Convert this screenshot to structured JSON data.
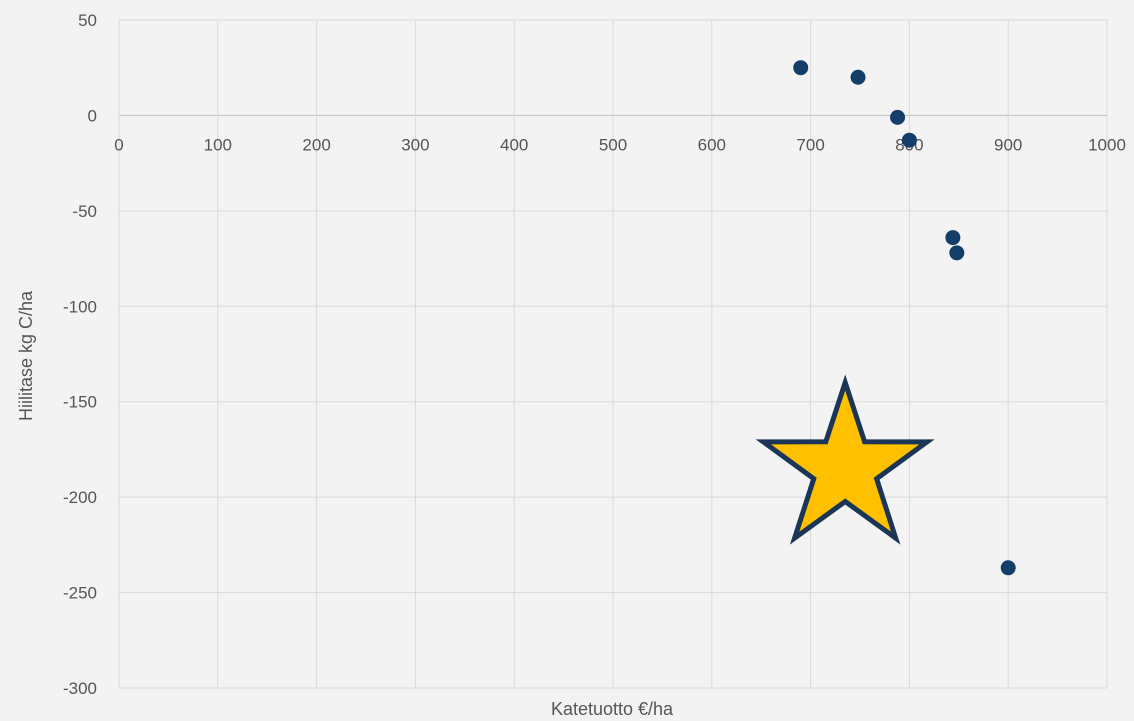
{
  "chart_data": {
    "type": "scatter",
    "xlabel": "Katetuotto €/ha",
    "ylabel": "Hiilitase kg C/ha",
    "xlim": [
      0,
      1000
    ],
    "ylim": [
      -300,
      50
    ],
    "x_ticks": [
      0,
      100,
      200,
      300,
      400,
      500,
      600,
      700,
      800,
      900,
      1000
    ],
    "y_ticks": [
      50,
      0,
      -50,
      -100,
      -150,
      -200,
      -250,
      -300
    ],
    "grid": true,
    "points": [
      {
        "x": 690,
        "y": 25
      },
      {
        "x": 748,
        "y": 20
      },
      {
        "x": 788,
        "y": -1
      },
      {
        "x": 800,
        "y": -13
      },
      {
        "x": 844,
        "y": -64
      },
      {
        "x": 848,
        "y": -72
      },
      {
        "x": 900,
        "y": -237
      }
    ],
    "highlight_marker": {
      "shape": "star",
      "x": 735,
      "y": -185
    },
    "colors": {
      "point": "#133e6a",
      "star_fill": "#ffc000",
      "star_stroke": "#1a3556",
      "grid": "#d9d9d9",
      "text": "#555555"
    }
  }
}
